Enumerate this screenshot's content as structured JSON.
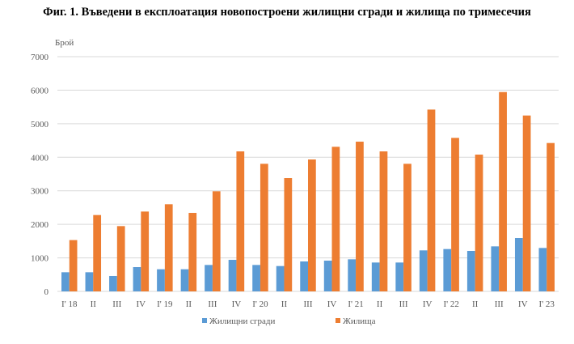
{
  "chart_data": {
    "type": "bar",
    "title": "Фиг. 1. Въведени в експлоатация новопостроени жилищни сгради и жилища по тримесечия",
    "ylabel": "Брой",
    "xlabel": "",
    "ylim": [
      0,
      7000
    ],
    "yticks": [
      "0",
      "1000",
      "2000",
      "3000",
      "4000",
      "5000",
      "6000",
      "7000"
    ],
    "grid": true,
    "legend_position": "bottom",
    "categories": [
      "I' 18",
      "II",
      "III",
      "IV",
      "I' 19",
      "II",
      "III",
      "IV",
      "I' 20",
      "II",
      "III",
      "IV",
      "I' 21",
      "II",
      "III",
      "IV",
      "I' 22",
      "II",
      "III",
      "IV",
      "I' 23"
    ],
    "series": [
      {
        "name": "Жилищни сгради",
        "color": "#5B9BD5",
        "values": [
          571,
          571,
          459,
          724,
          660,
          660,
          788,
          941,
          788,
          756,
          893,
          917,
          957,
          861,
          861,
          1223,
          1263,
          1207,
          1343,
          1593,
          1295
        ]
      },
      {
        "name": "Жилища",
        "color": "#ED7D31",
        "values": [
          1530,
          2277,
          1947,
          2381,
          2599,
          2341,
          2985,
          4175,
          3805,
          3379,
          3934,
          4312,
          4465,
          4175,
          3805,
          5422,
          4578,
          4079,
          5945,
          5245,
          4425
        ]
      }
    ]
  }
}
